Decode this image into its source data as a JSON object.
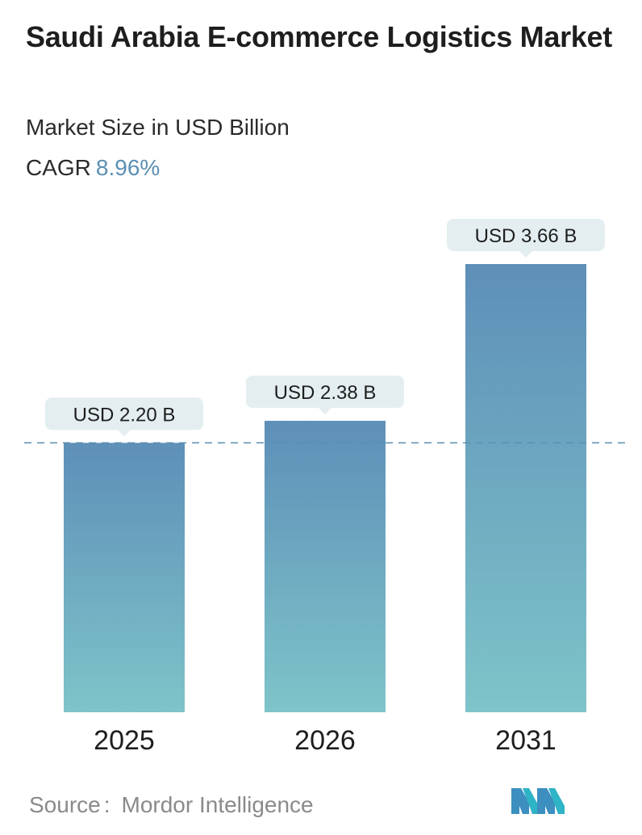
{
  "header": {
    "title": "Saudi Arabia E-commerce Logistics Market",
    "subtitle": "Market Size in USD Billion",
    "cagr_label": "CAGR",
    "cagr_value": "8.96%"
  },
  "chart_data": {
    "type": "bar",
    "categories": [
      "2025",
      "2026",
      "2031"
    ],
    "values": [
      2.2,
      2.38,
      3.66
    ],
    "data_labels": [
      "USD 2.20 B",
      "USD 2.38 B",
      "USD 3.66 B"
    ],
    "title": "Saudi Arabia E-commerce Logistics Market",
    "subtitle": "Market Size in USD Billion",
    "ylim": [
      0,
      3.66
    ],
    "reference_line": 2.2,
    "grid": false,
    "legend": "none",
    "colors": {
      "bar_top": "#5e8fb8",
      "bar_bottom": "#7ec4c9",
      "callout": "#e4eef0",
      "reference_line": "#5a8eb0"
    }
  },
  "footer": {
    "source_label": "Source",
    "source_sep": ":",
    "source_value": "Mordor Intelligence",
    "logo_icon": "mordor-intelligence-logo-icon"
  }
}
